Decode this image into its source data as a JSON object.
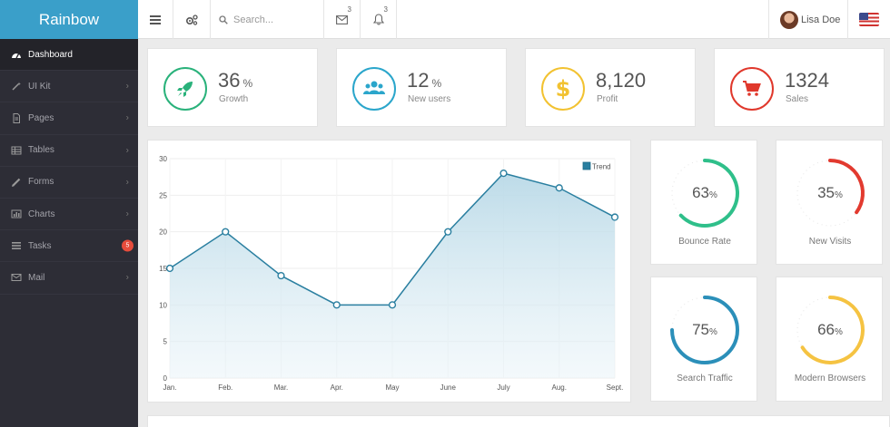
{
  "brand": {
    "title": "Rainbow"
  },
  "topbar": {
    "search_placeholder": "Search...",
    "mail_count": "3",
    "bell_count": "3",
    "user_name": "Lisa Doe"
  },
  "sidebar": {
    "items": [
      {
        "label": "Dashboard",
        "icon": "dashboard-icon",
        "active": true
      },
      {
        "label": "UI Kit",
        "icon": "magic-wand-icon"
      },
      {
        "label": "Pages",
        "icon": "file-icon"
      },
      {
        "label": "Tables",
        "icon": "table-icon"
      },
      {
        "label": "Forms",
        "icon": "pencil-icon"
      },
      {
        "label": "Charts",
        "icon": "bar-chart-icon"
      },
      {
        "label": "Tasks",
        "icon": "tasks-icon",
        "badge": "5"
      },
      {
        "label": "Mail",
        "icon": "envelope-icon"
      }
    ]
  },
  "stats": [
    {
      "value": "36",
      "unit": "%",
      "label": "Growth",
      "icon": "rocket-icon",
      "color": "#2ab27b"
    },
    {
      "value": "12",
      "unit": "%",
      "label": "New users",
      "icon": "users-icon",
      "color": "#2ba6cb"
    },
    {
      "value": "8,120",
      "unit": "",
      "label": "Profit",
      "icon": "dollar-icon",
      "color": "#f2c231"
    },
    {
      "value": "1324",
      "unit": "",
      "label": "Sales",
      "icon": "cart-icon",
      "color": "#e0382c"
    }
  ],
  "gauges": [
    {
      "value": 63,
      "unit": "%",
      "label": "Bounce Rate",
      "color": "#2fbf8a"
    },
    {
      "value": 35,
      "unit": "%",
      "label": "New Visits",
      "color": "#e23a2f"
    },
    {
      "value": 75,
      "unit": "%",
      "label": "Search Traffic",
      "color": "#2b8fb9"
    },
    {
      "value": 66,
      "unit": "%",
      "label": "Modern Browsers",
      "color": "#f5c342"
    }
  ],
  "chart_data": {
    "type": "area",
    "categories": [
      "Jan.",
      "Feb.",
      "Mar.",
      "Apr.",
      "May",
      "June",
      "July",
      "Aug.",
      "Sept."
    ],
    "series": [
      {
        "name": "Trend",
        "values": [
          15,
          20,
          14,
          10,
          10,
          20,
          28,
          26,
          22
        ]
      }
    ],
    "yticks": [
      0,
      5,
      10,
      15,
      20,
      25,
      30
    ],
    "ylim": [
      0,
      30
    ],
    "legend": "top-right",
    "color": "#2a7fa0"
  }
}
